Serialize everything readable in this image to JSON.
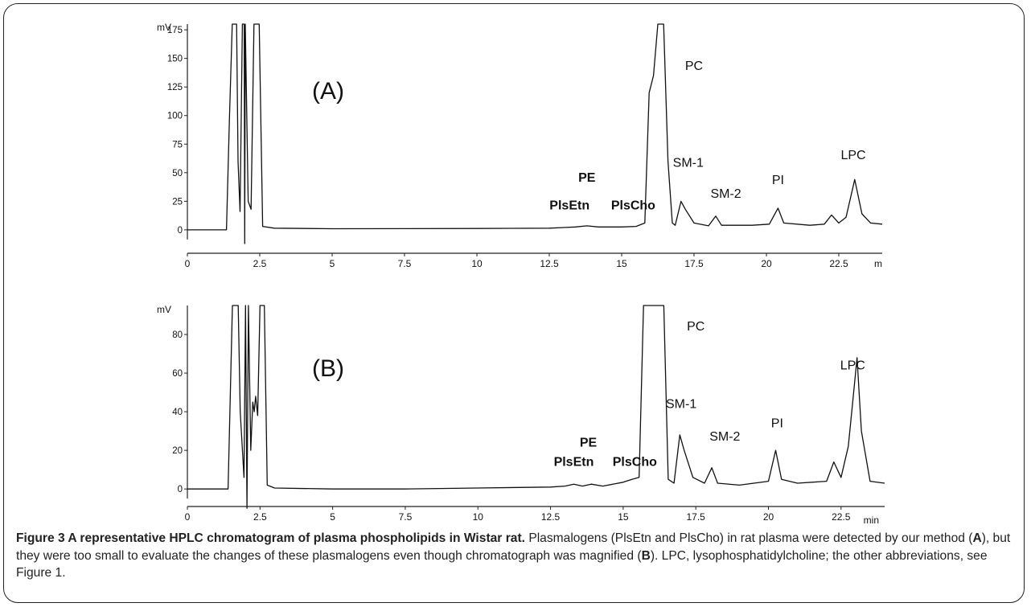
{
  "chart_data": [
    {
      "type": "line",
      "panel_label": "(A)",
      "y_unit": "mV",
      "x_unit": "m",
      "yticks": [
        "0",
        "25",
        "50",
        "75",
        "100",
        "125",
        "150",
        "175"
      ],
      "xticks": [
        "0",
        "2.5",
        "5",
        "7.5",
        "10",
        "12.5",
        "15",
        "17.5",
        "20",
        "22.5"
      ],
      "ylim": [
        -5,
        180
      ],
      "xlim": [
        0,
        24
      ],
      "grid": false,
      "peak_labels": [
        {
          "text": "PE",
          "x": 13.8,
          "y": 42,
          "bold": true
        },
        {
          "text": "PlsEtn",
          "x": 13.2,
          "y": 18,
          "bold": true
        },
        {
          "text": "PlsCho",
          "x": 15.4,
          "y": 18,
          "bold": true
        },
        {
          "text": "PC",
          "x": 17.5,
          "y": 140,
          "bold": false
        },
        {
          "text": "SM-1",
          "x": 17.3,
          "y": 55,
          "bold": false
        },
        {
          "text": "SM-2",
          "x": 18.6,
          "y": 28,
          "bold": false
        },
        {
          "text": "PI",
          "x": 20.4,
          "y": 40,
          "bold": false
        },
        {
          "text": "LPC",
          "x": 23.0,
          "y": 62,
          "bold": false
        }
      ],
      "trace": [
        [
          0,
          0
        ],
        [
          1.35,
          0
        ],
        [
          1.45,
          95
        ],
        [
          1.55,
          182
        ],
        [
          1.7,
          182
        ],
        [
          1.75,
          60
        ],
        [
          1.82,
          16
        ],
        [
          1.9,
          182
        ],
        [
          1.96,
          182
        ],
        [
          1.98,
          -12
        ],
        [
          2.0,
          182
        ],
        [
          2.1,
          25
        ],
        [
          2.2,
          18
        ],
        [
          2.3,
          182
        ],
        [
          2.48,
          182
        ],
        [
          2.6,
          3
        ],
        [
          3.0,
          1.5
        ],
        [
          5,
          1
        ],
        [
          10,
          1.2
        ],
        [
          12.5,
          1.5
        ],
        [
          13.0,
          2.0
        ],
        [
          13.4,
          2.5
        ],
        [
          13.8,
          3.5
        ],
        [
          14.2,
          2.5
        ],
        [
          15.0,
          2.5
        ],
        [
          15.5,
          3.0
        ],
        [
          15.8,
          6
        ],
        [
          15.95,
          120
        ],
        [
          16.1,
          135
        ],
        [
          16.25,
          182
        ],
        [
          16.45,
          182
        ],
        [
          16.6,
          60
        ],
        [
          16.75,
          6
        ],
        [
          16.85,
          4
        ],
        [
          17.05,
          25
        ],
        [
          17.2,
          18
        ],
        [
          17.5,
          6
        ],
        [
          18.0,
          3.5
        ],
        [
          18.25,
          12
        ],
        [
          18.45,
          4
        ],
        [
          19.5,
          4
        ],
        [
          20.1,
          5
        ],
        [
          20.4,
          19
        ],
        [
          20.6,
          6
        ],
        [
          21.5,
          4
        ],
        [
          22.0,
          5
        ],
        [
          22.25,
          13
        ],
        [
          22.5,
          6
        ],
        [
          22.75,
          11
        ],
        [
          23.05,
          44
        ],
        [
          23.3,
          14
        ],
        [
          23.6,
          6
        ],
        [
          24,
          5
        ]
      ]
    },
    {
      "type": "line",
      "panel_label": "(B)",
      "y_unit": "mV",
      "x_unit": "min",
      "yticks": [
        "0",
        "20",
        "40",
        "60",
        "80"
      ],
      "xticks": [
        "0",
        "2.5",
        "5",
        "7.5",
        "10",
        "12.5",
        "15",
        "17.5",
        "20",
        "22.5"
      ],
      "ylim": [
        -7,
        95
      ],
      "xlim": [
        0,
        24
      ],
      "grid": false,
      "peak_labels": [
        {
          "text": "PE",
          "x": 13.8,
          "y": 22,
          "bold": true
        },
        {
          "text": "PlsEtn",
          "x": 13.3,
          "y": 12,
          "bold": true
        },
        {
          "text": "PlsCho",
          "x": 15.4,
          "y": 12,
          "bold": true
        },
        {
          "text": "PC",
          "x": 17.5,
          "y": 82,
          "bold": false
        },
        {
          "text": "SM-1",
          "x": 17.0,
          "y": 42,
          "bold": false
        },
        {
          "text": "SM-2",
          "x": 18.5,
          "y": 25,
          "bold": false
        },
        {
          "text": "PI",
          "x": 20.3,
          "y": 32,
          "bold": false
        },
        {
          "text": "LPC",
          "x": 22.9,
          "y": 62,
          "bold": false
        }
      ],
      "trace": [
        [
          0,
          0
        ],
        [
          1.4,
          0
        ],
        [
          1.55,
          100
        ],
        [
          1.75,
          100
        ],
        [
          1.82,
          40
        ],
        [
          1.95,
          6
        ],
        [
          2.0,
          100
        ],
        [
          2.05,
          -10
        ],
        [
          2.1,
          100
        ],
        [
          2.18,
          20
        ],
        [
          2.25,
          45
        ],
        [
          2.3,
          40
        ],
        [
          2.35,
          48
        ],
        [
          2.42,
          38
        ],
        [
          2.5,
          100
        ],
        [
          2.65,
          100
        ],
        [
          2.75,
          2
        ],
        [
          3.0,
          0.5
        ],
        [
          5,
          0
        ],
        [
          7.5,
          0
        ],
        [
          10,
          0.5
        ],
        [
          12.5,
          1
        ],
        [
          13.0,
          1.5
        ],
        [
          13.3,
          2.5
        ],
        [
          13.6,
          1.5
        ],
        [
          13.9,
          2.5
        ],
        [
          14.3,
          1.5
        ],
        [
          15.0,
          3.5
        ],
        [
          15.3,
          5
        ],
        [
          15.55,
          6
        ],
        [
          15.7,
          100
        ],
        [
          16.4,
          100
        ],
        [
          16.55,
          5
        ],
        [
          16.75,
          3
        ],
        [
          16.95,
          28
        ],
        [
          17.1,
          20
        ],
        [
          17.4,
          6
        ],
        [
          17.8,
          3
        ],
        [
          18.05,
          11
        ],
        [
          18.25,
          3
        ],
        [
          19.0,
          2
        ],
        [
          19.5,
          3
        ],
        [
          20.0,
          4
        ],
        [
          20.25,
          20
        ],
        [
          20.45,
          5
        ],
        [
          21.0,
          3
        ],
        [
          22.0,
          4
        ],
        [
          22.25,
          14
        ],
        [
          22.5,
          6
        ],
        [
          22.75,
          22
        ],
        [
          22.9,
          45
        ],
        [
          23.05,
          68
        ],
        [
          23.2,
          30
        ],
        [
          23.5,
          4
        ],
        [
          24,
          3
        ]
      ]
    }
  ],
  "caption": {
    "title": "Figure 3 A representative HPLC chromatogram of plasma phospholipids in Wistar rat.",
    "text_1": " Plasmalogens (PlsEtn and PlsCho) in rat plasma were detected by our method (",
    "bold_a": "A",
    "text_2": "), but they were too small to evaluate the changes of these plasmalogens even though chromatograph was magnified (",
    "bold_b": "B",
    "text_3": "). LPC, lysophosphatidylcholine; the other abbreviations, see Figure 1."
  }
}
